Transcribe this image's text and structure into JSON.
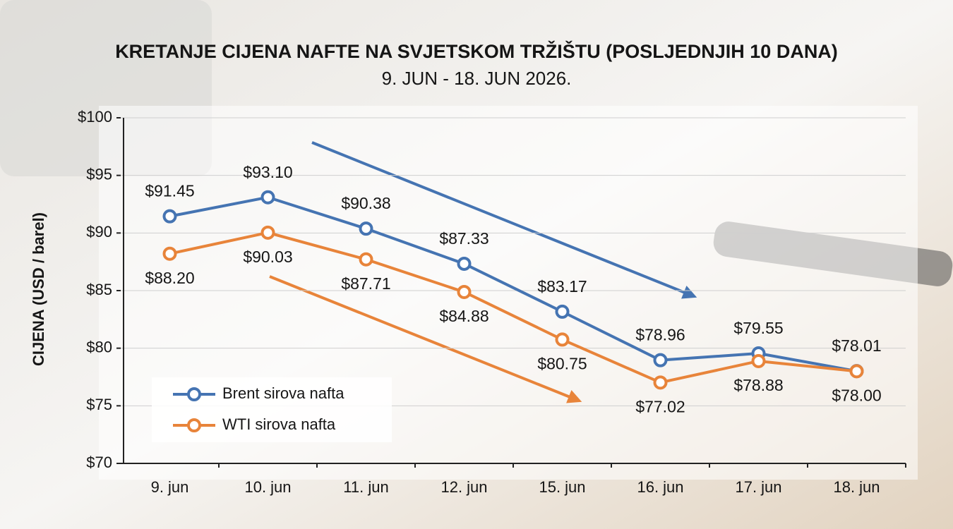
{
  "chart_data": {
    "type": "line",
    "title": "KRETANJE CIJENA NAFTE NA SVJETSKOM TRŽIŠTU (POSLJEDNJIH 10 DANA)",
    "subtitle": "9. JUN - 18. JUN 2026.",
    "y_label": "CIJENA (USD / barel)",
    "categories": [
      "9. jun",
      "10. jun",
      "11. jun",
      "12. jun",
      "15. jun",
      "16. jun",
      "17. jun",
      "18. jun"
    ],
    "series": [
      {
        "name": "Brent sirova nafta",
        "color": "#4574b2",
        "values": [
          91.45,
          93.1,
          90.38,
          87.33,
          83.17,
          78.96,
          79.55,
          78.01
        ],
        "value_labels": [
          "$91.45",
          "$93.10",
          "$90.38",
          "$87.33",
          "$83.17",
          "$78.96",
          "$79.55",
          "$78.01"
        ]
      },
      {
        "name": "WTI sirova nafta",
        "color": "#e8843a",
        "values": [
          88.2,
          90.03,
          87.71,
          84.88,
          80.75,
          77.02,
          78.88,
          78.0
        ],
        "value_labels": [
          "$88.20",
          "$90.03",
          "$87.71",
          "$84.88",
          "$80.75",
          "$77.02",
          "$78.88",
          "$78.00"
        ]
      }
    ],
    "ylim": [
      70,
      100
    ],
    "yticks": [
      {
        "value": 70,
        "label": "$70"
      },
      {
        "value": 75,
        "label": "$75"
      },
      {
        "value": 80,
        "label": "$80"
      },
      {
        "value": 85,
        "label": "$85"
      },
      {
        "value": 90,
        "label": "$90"
      },
      {
        "value": 95,
        "label": "$95"
      },
      {
        "value": 100,
        "label": "$100"
      }
    ],
    "grid": true,
    "legend": "lower left"
  }
}
